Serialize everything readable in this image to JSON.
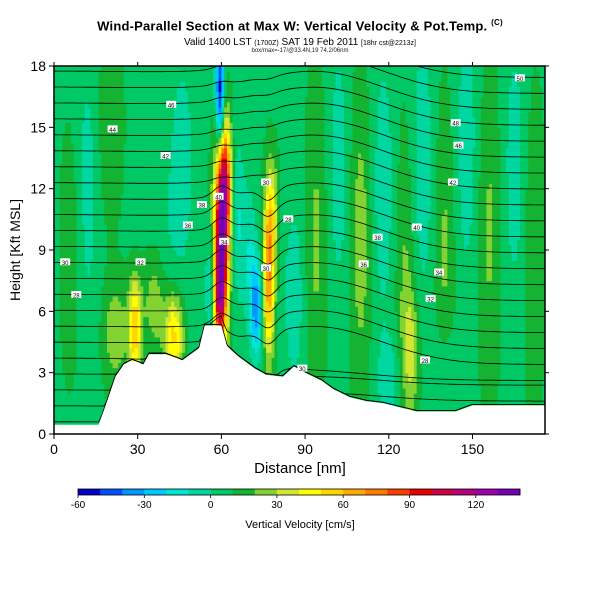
{
  "chart_data": {
    "type": "heatmap",
    "title": "Wind-Parallel Section at Max W: Vertical Velocity & Pot.Temp.",
    "title_mark": "(C)",
    "subtitle_main": "Valid 1400 LST",
    "subtitle_utc": "(1700Z)",
    "subtitle_date": "SAT 19 Feb 2011",
    "subtitle_run": "[18hr cst@2213z]",
    "info_line": "box/max=-17/@33.4N,19 74.2/06nm",
    "xlabel": "Distance [nm]",
    "ylabel": "Height [Kft MSL]",
    "xlim": [
      0,
      176
    ],
    "ylim": [
      0,
      18
    ],
    "xticks": [
      0,
      30,
      60,
      90,
      120,
      150
    ],
    "yticks": [
      0,
      3,
      6,
      9,
      12,
      15,
      18
    ],
    "colorbar": {
      "label": "Vertical Velocity [cm/s]",
      "min": -60,
      "max": 140,
      "step": 10,
      "tick_values": [
        -60,
        -30,
        0,
        30,
        60,
        90,
        120
      ],
      "colors": [
        "#0000c8",
        "#0050ff",
        "#0096ff",
        "#00c8ff",
        "#00e6d2",
        "#00d6a0",
        "#00c864",
        "#14b432",
        "#82d232",
        "#d2e632",
        "#ffff00",
        "#ffd700",
        "#ffaa00",
        "#ff7800",
        "#ff3c00",
        "#e60000",
        "#c80046",
        "#b4007a",
        "#9b00aa",
        "#7800b4"
      ]
    },
    "background_w": 8,
    "terrain": [
      {
        "x": 0,
        "h": 0.45
      },
      {
        "x": 16,
        "h": 0.45
      },
      {
        "x": 18,
        "h": 1.2
      },
      {
        "x": 22,
        "h": 2.8
      },
      {
        "x": 25,
        "h": 3.4
      },
      {
        "x": 28,
        "h": 3.6
      },
      {
        "x": 32,
        "h": 3.4
      },
      {
        "x": 34,
        "h": 3.9
      },
      {
        "x": 40,
        "h": 3.9
      },
      {
        "x": 46,
        "h": 3.6
      },
      {
        "x": 52,
        "h": 4.2
      },
      {
        "x": 54,
        "h": 5.3
      },
      {
        "x": 60,
        "h": 5.3
      },
      {
        "x": 62,
        "h": 4.3
      },
      {
        "x": 66,
        "h": 3.8
      },
      {
        "x": 72,
        "h": 3.2
      },
      {
        "x": 76,
        "h": 2.9
      },
      {
        "x": 82,
        "h": 2.8
      },
      {
        "x": 86,
        "h": 3.3
      },
      {
        "x": 90,
        "h": 3.0
      },
      {
        "x": 96,
        "h": 2.6
      },
      {
        "x": 100,
        "h": 2.2
      },
      {
        "x": 106,
        "h": 1.8
      },
      {
        "x": 112,
        "h": 1.6
      },
      {
        "x": 118,
        "h": 1.5
      },
      {
        "x": 124,
        "h": 1.3
      },
      {
        "x": 130,
        "h": 1.1
      },
      {
        "x": 144,
        "h": 1.1
      },
      {
        "x": 150,
        "h": 1.4
      },
      {
        "x": 176,
        "h": 1.4
      }
    ],
    "features": [
      {
        "x": 60,
        "z": 9.5,
        "sx": 1.8,
        "sz": 3.2,
        "w": 125
      },
      {
        "x": 59,
        "z": 6.5,
        "sx": 1.4,
        "sz": 1.5,
        "w": 50
      },
      {
        "x": 61.5,
        "z": 12.5,
        "sx": 1.5,
        "sz": 2.0,
        "w": 55
      },
      {
        "x": 77,
        "z": 7.6,
        "sx": 1.4,
        "sz": 2.6,
        "w": 62
      },
      {
        "x": 78,
        "z": 11,
        "sx": 1.6,
        "sz": 1.8,
        "w": 28
      },
      {
        "x": 29,
        "z": 5.2,
        "sx": 1.6,
        "sz": 1.7,
        "w": 52
      },
      {
        "x": 43,
        "z": 4.8,
        "sx": 2.4,
        "sz": 1.5,
        "w": 48
      },
      {
        "x": 22,
        "z": 5.0,
        "sx": 3.0,
        "sz": 1.8,
        "w": 20
      },
      {
        "x": 36,
        "z": 6.5,
        "sx": 3.0,
        "sz": 2.0,
        "w": 22
      },
      {
        "x": 59.5,
        "z": 16.5,
        "sx": 1.1,
        "sz": 2.0,
        "w": -70
      },
      {
        "x": 56.5,
        "z": 7.2,
        "sx": 1.6,
        "sz": 2.0,
        "w": -22
      },
      {
        "x": 66,
        "z": 10.5,
        "sx": 1.6,
        "sz": 2.8,
        "w": -18
      },
      {
        "x": 72.5,
        "z": 6.2,
        "sx": 1.5,
        "sz": 1.7,
        "w": -42
      },
      {
        "x": 70,
        "z": 8.8,
        "sx": 1.8,
        "sz": 2.5,
        "w": -16
      },
      {
        "x": 40,
        "z": 8.5,
        "sx": 6.0,
        "sz": 4.0,
        "w": -8
      },
      {
        "x": 86,
        "z": 6.8,
        "sx": 2.5,
        "sz": 3.0,
        "w": -16
      },
      {
        "x": 94,
        "z": 9.5,
        "sx": 2.5,
        "sz": 5.0,
        "w": 14
      },
      {
        "x": 102,
        "z": 13,
        "sx": 2.5,
        "sz": 4.5,
        "w": -14
      },
      {
        "x": 110,
        "z": 9.5,
        "sx": 2.5,
        "sz": 5.0,
        "w": 18
      },
      {
        "x": 118,
        "z": 12,
        "sx": 3.0,
        "sz": 5.0,
        "w": -14
      },
      {
        "x": 126,
        "z": 8,
        "sx": 2.5,
        "sz": 5.0,
        "w": 14
      },
      {
        "x": 132,
        "z": 13,
        "sx": 3.0,
        "sz": 5.0,
        "w": -15
      },
      {
        "x": 140,
        "z": 9,
        "sx": 2.5,
        "sz": 5.0,
        "w": 14
      },
      {
        "x": 148,
        "z": 14,
        "sx": 3.0,
        "sz": 5.0,
        "w": -14
      },
      {
        "x": 156,
        "z": 10,
        "sx": 3.0,
        "sz": 5.0,
        "w": 14
      },
      {
        "x": 165,
        "z": 13,
        "sx": 3.0,
        "sz": 5.0,
        "w": -13
      },
      {
        "x": 172,
        "z": 9,
        "sx": 2.5,
        "sz": 5.0,
        "w": 12
      },
      {
        "x": 12,
        "z": 12,
        "sx": 3.0,
        "sz": 5.0,
        "w": -12
      },
      {
        "x": 6,
        "z": 9,
        "sx": 2.5,
        "sz": 4.0,
        "w": 10
      },
      {
        "x": 20,
        "z": 15,
        "sx": 3.0,
        "sz": 3.0,
        "w": 12
      },
      {
        "x": 46,
        "z": 14,
        "sx": 3.0,
        "sz": 3.5,
        "w": -12
      },
      {
        "x": 120,
        "z": 2.5,
        "sx": 3.0,
        "sz": 1.6,
        "w": -14
      },
      {
        "x": 140,
        "z": 3.0,
        "sx": 3.0,
        "sz": 1.8,
        "w": -10
      },
      {
        "x": 128,
        "z": 4.0,
        "sx": 2.0,
        "sz": 2.0,
        "w": 24
      }
    ],
    "isentropes": {
      "description": "Potential temperature contours (every 2 K)",
      "count": 24,
      "labels": [
        {
          "value": "46",
          "x": 42,
          "z": 16.1
        },
        {
          "value": "44",
          "x": 21,
          "z": 14.9
        },
        {
          "value": "42",
          "x": 40,
          "z": 13.6
        },
        {
          "value": "40",
          "x": 59,
          "z": 11.6
        },
        {
          "value": "38",
          "x": 53,
          "z": 11.2
        },
        {
          "value": "36",
          "x": 48,
          "z": 10.2
        },
        {
          "value": "34",
          "x": 61,
          "z": 9.4
        },
        {
          "value": "32",
          "x": 31,
          "z": 8.4
        },
        {
          "value": "30",
          "x": 4,
          "z": 8.4
        },
        {
          "value": "28",
          "x": 8,
          "z": 6.8
        },
        {
          "value": "50",
          "x": 167,
          "z": 17.4
        },
        {
          "value": "48",
          "x": 144,
          "z": 15.2
        },
        {
          "value": "46",
          "x": 145,
          "z": 14.1
        },
        {
          "value": "42",
          "x": 143,
          "z": 12.3
        },
        {
          "value": "40",
          "x": 130,
          "z": 10.1
        },
        {
          "value": "38",
          "x": 116,
          "z": 9.6
        },
        {
          "value": "36",
          "x": 111,
          "z": 8.3
        },
        {
          "value": "34",
          "x": 138,
          "z": 7.9
        },
        {
          "value": "32",
          "x": 135,
          "z": 6.6
        },
        {
          "value": "30",
          "x": 76,
          "z": 8.1
        },
        {
          "value": "30",
          "x": 76,
          "z": 12.3
        },
        {
          "value": "28",
          "x": 84,
          "z": 10.5
        },
        {
          "value": "28",
          "x": 133,
          "z": 3.6
        },
        {
          "value": "30",
          "x": 89,
          "z": 3.2
        }
      ]
    }
  }
}
